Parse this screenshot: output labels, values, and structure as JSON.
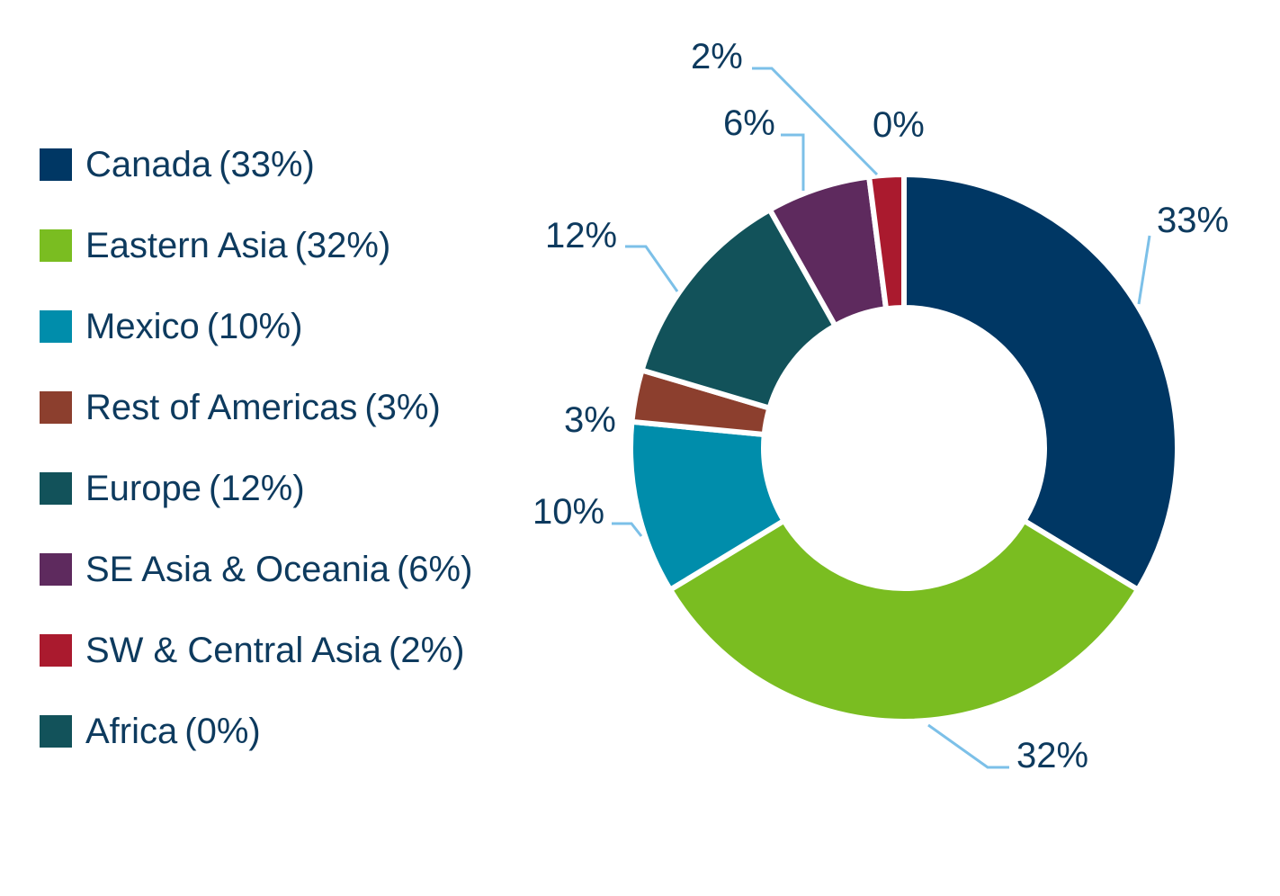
{
  "chart_data": {
    "type": "pie",
    "style": "donut",
    "title": "",
    "legend_position": "left",
    "slices": [
      {
        "name": "Canada",
        "value": 33,
        "label": "33%",
        "legend_pct": "(33%)",
        "color": "#003764"
      },
      {
        "name": "Eastern Asia",
        "value": 32,
        "label": "32%",
        "legend_pct": "(32%)",
        "color": "#7ABD21"
      },
      {
        "name": "Mexico",
        "value": 10,
        "label": "10%",
        "legend_pct": "(10%)",
        "color": "#008DAB"
      },
      {
        "name": "Rest of Americas",
        "value": 3,
        "label": "3%",
        "legend_pct": "(3%)",
        "color": "#8C3F2E"
      },
      {
        "name": "Europe",
        "value": 12,
        "label": "12%",
        "legend_pct": "(12%)",
        "color": "#12525A"
      },
      {
        "name": "SE Asia & Oceania",
        "value": 6,
        "label": "6%",
        "legend_pct": "(6%)",
        "color": "#5E2A5E"
      },
      {
        "name": "SW & Central Asia",
        "value": 2,
        "label": "2%",
        "legend_pct": "(2%)",
        "color": "#AA1A2E"
      },
      {
        "name": "Africa",
        "value": 0,
        "label": "0%",
        "legend_pct": "(0%)",
        "color": "#12525A"
      }
    ]
  }
}
